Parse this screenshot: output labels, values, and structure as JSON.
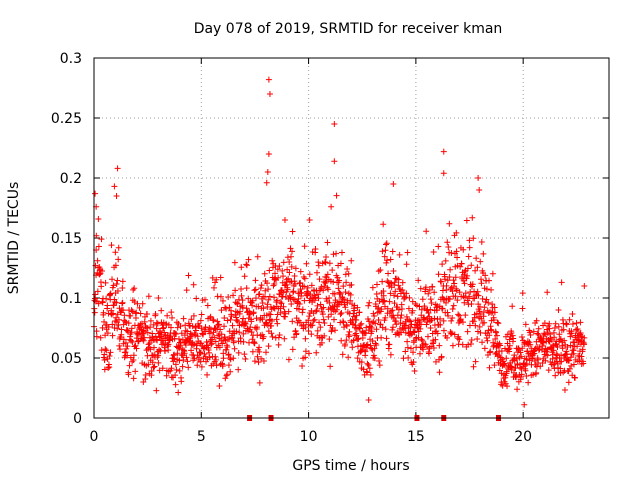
{
  "chart_data": {
    "type": "scatter",
    "title": "Day 078 of 2019, SRMTID for receiver kman",
    "xlabel": "GPS time / hours",
    "ylabel": "SRMTID / TECUs",
    "xlim": [
      0,
      24
    ],
    "ylim": [
      0,
      0.3
    ],
    "x_ticks": [
      "0",
      "5",
      "10",
      "15",
      "20"
    ],
    "y_ticks": [
      "0",
      "0.05",
      "0.1",
      "0.15",
      "0.2",
      "0.25",
      "0.3"
    ],
    "grid": true,
    "color": "#ff0000",
    "marker": "plus",
    "trend": [
      [
        0,
        0.08
      ],
      [
        0.25,
        0.13
      ],
      [
        0.5,
        0.07
      ],
      [
        0.8,
        0.08
      ],
      [
        1.1,
        0.1
      ],
      [
        1.5,
        0.07
      ],
      [
        2.0,
        0.07
      ],
      [
        2.5,
        0.06
      ],
      [
        3.0,
        0.06
      ],
      [
        3.5,
        0.055
      ],
      [
        4.0,
        0.06
      ],
      [
        4.5,
        0.065
      ],
      [
        5.0,
        0.065
      ],
      [
        5.5,
        0.07
      ],
      [
        6.0,
        0.065
      ],
      [
        6.5,
        0.07
      ],
      [
        7.0,
        0.09
      ],
      [
        7.5,
        0.08
      ],
      [
        8.0,
        0.09
      ],
      [
        8.5,
        0.095
      ],
      [
        9.0,
        0.1
      ],
      [
        9.5,
        0.1
      ],
      [
        10.0,
        0.09
      ],
      [
        10.5,
        0.1
      ],
      [
        11.0,
        0.1
      ],
      [
        11.5,
        0.095
      ],
      [
        12.0,
        0.08
      ],
      [
        12.5,
        0.065
      ],
      [
        13.0,
        0.06
      ],
      [
        13.5,
        0.11
      ],
      [
        14.0,
        0.1
      ],
      [
        14.5,
        0.08
      ],
      [
        15.0,
        0.07
      ],
      [
        15.5,
        0.085
      ],
      [
        16.0,
        0.08
      ],
      [
        16.5,
        0.11
      ],
      [
        17.0,
        0.1
      ],
      [
        17.5,
        0.1
      ],
      [
        18.0,
        0.1
      ],
      [
        18.5,
        0.08
      ],
      [
        19.0,
        0.045
      ],
      [
        19.5,
        0.05
      ],
      [
        20.0,
        0.05
      ],
      [
        20.5,
        0.055
      ],
      [
        21.0,
        0.06
      ],
      [
        21.5,
        0.055
      ],
      [
        22.0,
        0.055
      ],
      [
        22.5,
        0.06
      ],
      [
        22.8,
        0.055
      ]
    ],
    "outliers": [
      [
        8.15,
        0.282
      ],
      [
        8.2,
        0.27
      ],
      [
        8.15,
        0.22
      ],
      [
        8.1,
        0.205
      ],
      [
        8.05,
        0.196
      ],
      [
        11.2,
        0.245
      ],
      [
        11.2,
        0.214
      ],
      [
        16.3,
        0.222
      ],
      [
        16.3,
        0.204
      ],
      [
        1.1,
        0.208
      ],
      [
        0.95,
        0.193
      ],
      [
        1.05,
        0.185
      ],
      [
        13.95,
        0.195
      ],
      [
        17.9,
        0.2
      ],
      [
        17.95,
        0.19
      ],
      [
        0.05,
        0.187
      ],
      [
        0.1,
        0.176
      ],
      [
        20.05,
        0.011
      ],
      [
        22.85,
        0.11
      ],
      [
        8.9,
        0.165
      ],
      [
        10.05,
        0.165
      ],
      [
        11.05,
        0.176
      ],
      [
        3.0,
        0.1
      ],
      [
        2.3,
        0.03
      ],
      [
        12.8,
        0.015
      ],
      [
        0.1,
        0.14
      ]
    ],
    "gap_markers": [
      7.25,
      8.25,
      15.05,
      16.3,
      18.85
    ]
  }
}
